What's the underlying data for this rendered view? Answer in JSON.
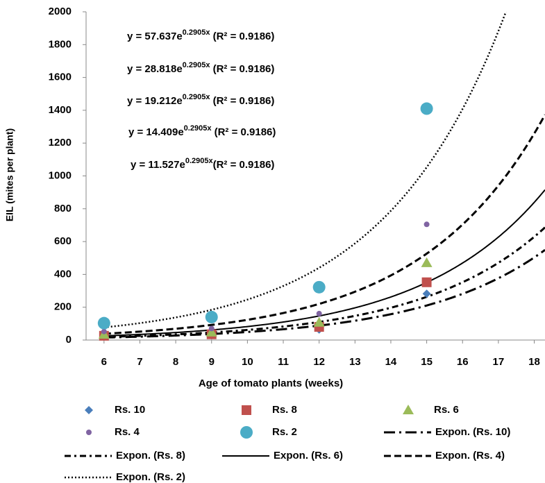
{
  "chart_data": {
    "type": "scatter",
    "x_label": "Age of tomato plants (weeks)",
    "y_label": "EIL (mites per plant)",
    "x": [
      6,
      9,
      12,
      15
    ],
    "series": [
      {
        "name": "Rs. 10",
        "color": "#4a7ebb",
        "marker": "diamond",
        "values": [
          21,
          28,
          64,
          282
        ]
      },
      {
        "name": "Rs. 8",
        "color": "#c0504d",
        "marker": "square",
        "values": [
          26,
          35,
          80,
          352
        ]
      },
      {
        "name": "Rs. 6",
        "color": "#9bbb59",
        "marker": "triangle",
        "values": [
          34,
          47,
          107,
          470
        ]
      },
      {
        "name": "Rs. 4",
        "color": "#8064a2",
        "marker": "small-circle",
        "values": [
          52,
          70,
          161,
          705
        ]
      },
      {
        "name": "Rs. 2",
        "color": "#4bacc6",
        "marker": "circle",
        "values": [
          103,
          140,
          322,
          1410
        ]
      }
    ],
    "trendlines": [
      {
        "name": "Expon. (Rs. 10)",
        "a": 11.527,
        "b": 0.2905,
        "dash": "long-dash-dot",
        "color": "#000000"
      },
      {
        "name": "Expon. (Rs. 8)",
        "a": 14.409,
        "b": 0.2905,
        "dash": "dash-dot",
        "color": "#000000"
      },
      {
        "name": "Expon. (Rs. 6)",
        "a": 19.212,
        "b": 0.2905,
        "dash": "solid",
        "color": "#000000"
      },
      {
        "name": "Expon. (Rs. 4)",
        "a": 28.818,
        "b": 0.2905,
        "dash": "dash",
        "color": "#000000"
      },
      {
        "name": "Expon. (Rs. 2)",
        "a": 57.637,
        "b": 0.2905,
        "dash": "dot",
        "color": "#000000"
      }
    ],
    "annotations": [
      {
        "text": "y = 57.637e",
        "sup": "0.2905x",
        "tail": " (R² = 0.9186)"
      },
      {
        "text": "y = 28.818e",
        "sup": "0.2905x",
        "tail": " (R² = 0.9186)"
      },
      {
        "text": "y = 19.212e",
        "sup": "0.2905x",
        "tail": " (R² = 0.9186)"
      },
      {
        "text": "y = 14.409e",
        "sup": "0.2905x",
        "tail": " (R² = 0.9186)"
      },
      {
        "text": "y = 11.527e",
        "sup": "0.2905x",
        "tail": "(R² = 0.9186)"
      }
    ],
    "xlim": [
      5.5,
      18.3
    ],
    "ylim": [
      0,
      2000
    ],
    "xticks": [
      6,
      7,
      8,
      9,
      10,
      11,
      12,
      13,
      14,
      15,
      16,
      17,
      18
    ],
    "yticks": [
      0,
      200,
      400,
      600,
      800,
      1000,
      1200,
      1400,
      1600,
      1800,
      2000
    ],
    "grid": false
  }
}
